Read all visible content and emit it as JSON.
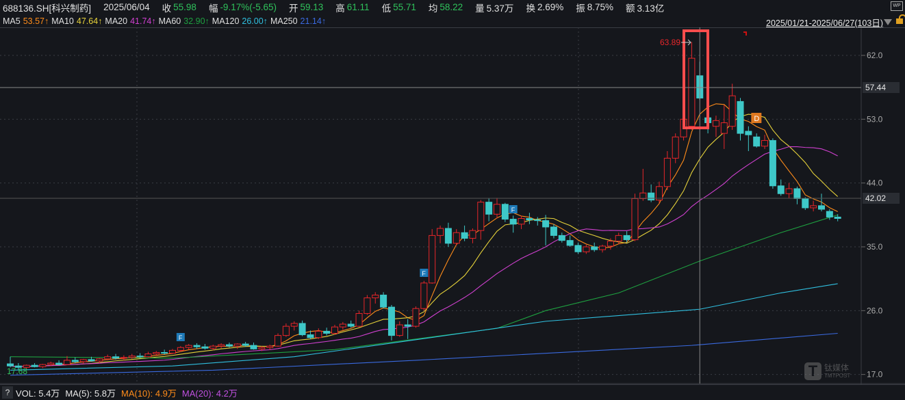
{
  "header": {
    "symbol": "688136.SH[科兴制药]",
    "date": "2025/06/04",
    "close_label": "收",
    "close": "55.98",
    "change_label": "幅",
    "change": "-9.17%(-5.65)",
    "open_label": "开",
    "open": "59.13",
    "high_label": "高",
    "high": "61.11",
    "low_label": "低",
    "low": "55.71",
    "avg_label": "均",
    "avg": "58.22",
    "vol_label": "量",
    "vol": "5.37万",
    "turnover_label": "换",
    "turnover": "2.69%",
    "amp_label": "振",
    "amp": "8.75%",
    "amount_label": "额",
    "amount": "3.13亿",
    "wp_icon": "WP"
  },
  "ma_bar": [
    {
      "label": "MA5",
      "value": "53.57↑",
      "color": "#ff8c1a"
    },
    {
      "label": "MA10",
      "value": "47.64↑",
      "color": "#e6d23a"
    },
    {
      "label": "MA20",
      "value": "41.74↑",
      "color": "#d040d0"
    },
    {
      "label": "MA60",
      "value": "32.90↑",
      "color": "#1ea040"
    },
    {
      "label": "MA120",
      "value": "26.00↑",
      "color": "#30c0e0"
    },
    {
      "label": "MA250",
      "value": "21.14↑",
      "color": "#3a6ae0"
    }
  ],
  "range": "2025/01/21-2025/06/27(103日)",
  "crosshair": {
    "price_label": "57.44",
    "current_price_label": "42.02"
  },
  "annotations": {
    "high_label": "63.89",
    "low_label": "17.68",
    "markers": [
      {
        "index": 21,
        "text": "F"
      },
      {
        "index": 51,
        "text": "F"
      },
      {
        "index": 62,
        "text": "F"
      },
      {
        "index": 91,
        "text": "D"
      }
    ]
  },
  "volume_bar": {
    "help": "?",
    "vol": "VOL: 5.4万",
    "ma5": "MA(5): 5.8万",
    "ma10": "MA(10): 4.9万",
    "ma20": "MA(20): 4.2万"
  },
  "watermark": {
    "cn": "钛媒体",
    "en": "TMTPOST"
  },
  "chart_data": {
    "type": "candlestick",
    "y_ticks": [
      62.0,
      53.0,
      44.0,
      35.0,
      26.0,
      17.0
    ],
    "ylim": [
      16.4,
      66.2
    ],
    "selected_index": 85,
    "up_color": "#e8262a",
    "down_color": "#3ec8c8",
    "ohlc": [
      [
        18.5,
        19.5,
        18,
        18.2
      ],
      [
        18.2,
        18.6,
        17.68,
        18.0
      ],
      [
        18.0,
        18.4,
        17.7,
        18.3
      ],
      [
        18.3,
        18.6,
        18.0,
        18.1
      ],
      [
        18.1,
        18.5,
        17.9,
        18.4
      ],
      [
        18.4,
        18.8,
        18.2,
        18.6
      ],
      [
        18.6,
        19.0,
        18.3,
        18.4
      ],
      [
        18.4,
        19.6,
        18.3,
        19.0
      ],
      [
        19.0,
        19.4,
        18.6,
        18.8
      ],
      [
        18.8,
        19.2,
        18.5,
        19.1
      ],
      [
        19.1,
        19.5,
        18.8,
        18.9
      ],
      [
        18.9,
        19.3,
        18.6,
        19.2
      ],
      [
        19.2,
        19.8,
        19.0,
        19.5
      ],
      [
        19.5,
        19.9,
        19.1,
        19.3
      ],
      [
        19.3,
        19.7,
        19.0,
        19.4
      ],
      [
        19.4,
        19.9,
        19.2,
        19.6
      ],
      [
        19.6,
        20.0,
        19.3,
        19.5
      ],
      [
        19.5,
        20.2,
        19.4,
        19.9
      ],
      [
        19.9,
        20.3,
        19.6,
        20.1
      ],
      [
        20.1,
        20.5,
        19.8,
        20.0
      ],
      [
        20.0,
        20.6,
        19.9,
        20.4
      ],
      [
        20.4,
        21.0,
        20.2,
        20.8
      ],
      [
        20.8,
        21.3,
        20.5,
        21.1
      ],
      [
        21.1,
        21.4,
        20.6,
        20.9
      ],
      [
        20.9,
        21.3,
        20.5,
        20.7
      ],
      [
        20.7,
        21.2,
        20.4,
        21.0
      ],
      [
        21.0,
        21.4,
        20.7,
        21.2
      ],
      [
        21.2,
        21.5,
        20.8,
        21.0
      ],
      [
        21.0,
        21.4,
        20.6,
        21.3
      ],
      [
        21.3,
        21.6,
        20.9,
        21.1
      ],
      [
        21.1,
        21.5,
        20.5,
        20.6
      ],
      [
        20.6,
        21.0,
        20.3,
        20.8
      ],
      [
        20.8,
        21.2,
        20.5,
        21.0
      ],
      [
        21.0,
        22.8,
        20.9,
        22.5
      ],
      [
        22.5,
        24.2,
        22.3,
        23.8
      ],
      [
        23.8,
        24.5,
        23.2,
        24.2
      ],
      [
        24.2,
        24.6,
        22.4,
        22.6
      ],
      [
        22.6,
        23.2,
        22.0,
        22.2
      ],
      [
        22.2,
        23.5,
        22.0,
        23.1
      ],
      [
        23.1,
        23.6,
        22.5,
        22.8
      ],
      [
        22.8,
        24.0,
        22.6,
        23.7
      ],
      [
        23.7,
        24.4,
        23.3,
        24.1
      ],
      [
        24.1,
        24.6,
        23.6,
        23.8
      ],
      [
        23.8,
        26.0,
        23.7,
        25.6
      ],
      [
        25.6,
        28.2,
        25.4,
        27.8
      ],
      [
        27.8,
        28.6,
        27.0,
        28.2
      ],
      [
        28.2,
        28.6,
        26.3,
        26.5
      ],
      [
        26.5,
        26.8,
        21.8,
        22.5
      ],
      [
        22.5,
        24.5,
        22.3,
        24.0
      ],
      [
        24.0,
        24.8,
        22.0,
        23.8
      ],
      [
        23.8,
        26.6,
        23.6,
        26.3
      ],
      [
        26.3,
        30.2,
        26.0,
        29.9
      ],
      [
        29.9,
        37.5,
        29.8,
        36.6
      ],
      [
        36.6,
        38.0,
        35.5,
        37.6
      ],
      [
        37.6,
        38.4,
        35.0,
        35.5
      ],
      [
        35.5,
        37.5,
        35.2,
        37.0
      ],
      [
        37.0,
        38.0,
        35.8,
        36.2
      ],
      [
        36.2,
        37.6,
        35.5,
        37.3
      ],
      [
        37.3,
        41.6,
        36.0,
        41.3
      ],
      [
        41.3,
        41.8,
        38.6,
        39.6
      ],
      [
        39.6,
        41.9,
        39.0,
        41.0
      ],
      [
        41.0,
        41.2,
        38.5,
        38.9
      ],
      [
        38.9,
        39.4,
        37.0,
        38.2
      ],
      [
        38.2,
        39.4,
        37.5,
        39.0
      ],
      [
        39.0,
        39.8,
        38.2,
        38.8
      ],
      [
        38.8,
        39.2,
        38.0,
        38.7
      ],
      [
        38.7,
        39.5,
        35.2,
        37.8
      ],
      [
        37.8,
        38.2,
        36.2,
        36.6
      ],
      [
        36.6,
        37.0,
        35.6,
        35.9
      ],
      [
        35.9,
        36.6,
        35.0,
        35.2
      ],
      [
        35.2,
        35.6,
        34.0,
        34.3
      ],
      [
        34.3,
        35.3,
        34.0,
        35.0
      ],
      [
        35.0,
        35.6,
        34.3,
        34.6
      ],
      [
        34.6,
        35.3,
        34.2,
        35.1
      ],
      [
        35.1,
        36.2,
        34.6,
        35.8
      ],
      [
        35.8,
        37.0,
        35.4,
        36.6
      ],
      [
        36.6,
        37.2,
        35.6,
        36.0
      ],
      [
        36.0,
        42.5,
        35.8,
        41.8
      ],
      [
        41.8,
        46.0,
        41.5,
        42.6
      ],
      [
        42.6,
        43.8,
        41.3,
        41.6
      ],
      [
        41.6,
        44.2,
        41.2,
        43.5
      ],
      [
        43.5,
        48.5,
        43.0,
        47.5
      ],
      [
        47.5,
        51.0,
        46.8,
        50.5
      ],
      [
        50.5,
        55.6,
        50.0,
        53.0
      ],
      [
        52.0,
        63.89,
        51.5,
        61.6
      ],
      [
        59.13,
        61.11,
        55.71,
        55.98
      ],
      [
        53.2,
        55.0,
        51.0,
        52.5
      ],
      [
        52.0,
        53.5,
        50.5,
        52.8
      ],
      [
        51.0,
        55.0,
        48.8,
        52.5
      ],
      [
        52.0,
        58.0,
        51.5,
        56.3
      ],
      [
        55.5,
        56.0,
        50.0,
        51.0
      ],
      [
        51.3,
        52.0,
        48.5,
        50.8
      ],
      [
        50.5,
        51.0,
        49.0,
        49.2
      ],
      [
        49.2,
        50.8,
        48.8,
        50.0
      ],
      [
        50.0,
        50.3,
        43.2,
        43.6
      ],
      [
        43.6,
        44.5,
        42.2,
        42.5
      ],
      [
        42.5,
        44.0,
        41.8,
        43.2
      ],
      [
        43.2,
        43.5,
        41.0,
        41.8
      ],
      [
        41.8,
        42.0,
        40.2,
        40.5
      ],
      [
        40.5,
        41.5,
        40.0,
        40.8
      ],
      [
        40.8,
        42.5,
        40.0,
        40.3
      ],
      [
        40.0,
        40.3,
        38.8,
        39.2
      ],
      [
        39.2,
        39.6,
        38.6,
        39.0
      ]
    ],
    "moving_averages": [
      {
        "name": "MA5",
        "period": 5,
        "color": "#ff8c1a"
      },
      {
        "name": "MA10",
        "period": 10,
        "color": "#e6d23a"
      },
      {
        "name": "MA20",
        "period": 20,
        "color": "#d040d0"
      },
      {
        "name": "MA60",
        "color": "#1ea040",
        "points": [
          [
            0,
            19.5
          ],
          [
            20,
            19.3
          ],
          [
            40,
            20.5
          ],
          [
            60,
            23.5
          ],
          [
            66,
            26.0
          ],
          [
            75,
            28.5
          ],
          [
            85,
            33.0
          ],
          [
            95,
            37.0
          ],
          [
            102,
            39.5
          ]
        ]
      },
      {
        "name": "MA120",
        "color": "#30c0e0",
        "points": [
          [
            0,
            17.6
          ],
          [
            20,
            18.2
          ],
          [
            35,
            19.5
          ],
          [
            50,
            21.9
          ],
          [
            66,
            24.5
          ],
          [
            85,
            26.2
          ],
          [
            95,
            28.5
          ],
          [
            102,
            29.8
          ]
        ]
      },
      {
        "name": "MA250",
        "color": "#3a6ae0",
        "points": [
          [
            0,
            16.9
          ],
          [
            25,
            17.6
          ],
          [
            50,
            19.0
          ],
          [
            84,
            21.1
          ],
          [
            102,
            22.8
          ]
        ]
      }
    ]
  }
}
